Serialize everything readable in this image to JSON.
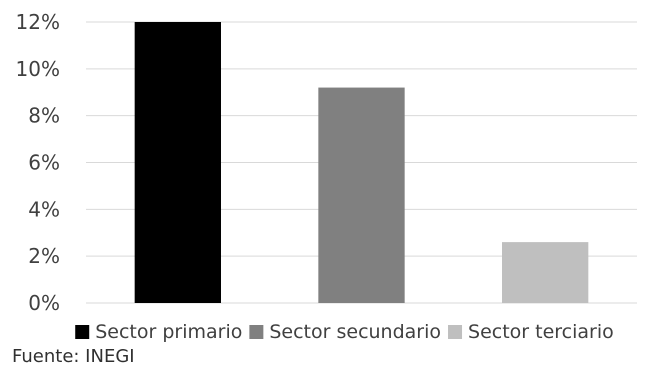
{
  "chart_data": {
    "type": "bar",
    "categories": [
      "Sector primario",
      "Sector secundario",
      "Sector terciario"
    ],
    "values": [
      12.0,
      9.2,
      2.6
    ],
    "colors": [
      "#000000",
      "#808080",
      "#bfbfbf"
    ],
    "ylim": [
      0,
      12
    ],
    "y_ticks": [
      0,
      2,
      4,
      6,
      8,
      10,
      12
    ],
    "y_tick_labels": [
      "0%",
      "2%",
      "4%",
      "6%",
      "8%",
      "10%",
      "12%"
    ],
    "grid": true,
    "grid_color": "#d9d9d9",
    "legend_position": "bottom"
  },
  "source": "Fuente: INEGI"
}
